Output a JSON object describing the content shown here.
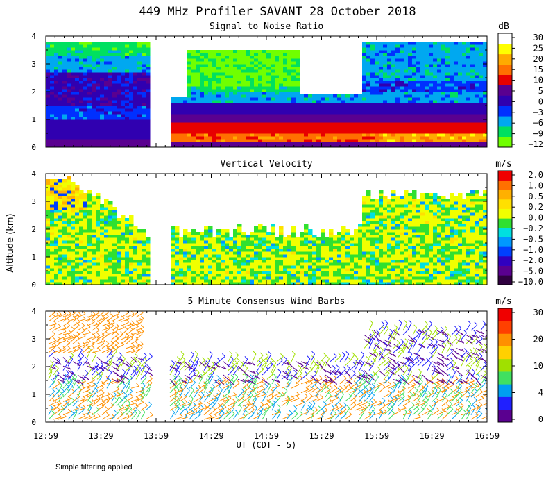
{
  "title": "449 MHz Profiler SAVANT 28 October 2018",
  "ylabel": "Altitude (km)",
  "xlabel": "UT  (CDT - 5)",
  "footer": "Simple filtering applied",
  "x_ticks": [
    "12:59",
    "13:29",
    "13:59",
    "14:29",
    "14:59",
    "15:29",
    "15:59",
    "16:29",
    "16:59"
  ],
  "colors": {
    "snr": [
      "#70ff00",
      "#00e060",
      "#00a8f0",
      "#0030ff",
      "#3000b0",
      "#5a0090",
      "#e80000",
      "#ff7000",
      "#ffaa00",
      "#ffff00",
      "#ffffff"
    ],
    "vel": [
      "#300040",
      "#5a0090",
      "#3000c0",
      "#0040ff",
      "#0098ff",
      "#00e0e0",
      "#30e030",
      "#f0ff00",
      "#ffe000",
      "#ffb000",
      "#ff7000",
      "#f00000"
    ],
    "wind": [
      "#5a0090",
      "#2020ff",
      "#00a0f0",
      "#40e060",
      "#a0e000",
      "#ffd000",
      "#ff9000",
      "#ff4000",
      "#f00000"
    ]
  },
  "chart_data": [
    {
      "type": "heatmap",
      "title": "Signal to Noise Ratio",
      "units": "dB",
      "xlim": [
        "12:59",
        "16:59"
      ],
      "ylim": [
        0,
        4
      ],
      "y_ticks": [
        "0",
        "1",
        "2",
        "3",
        "4"
      ],
      "colorbar_ticks": [
        "30",
        "25",
        "20",
        "15",
        "10",
        "5",
        "0",
        "−3",
        "−6",
        "−9",
        "−12"
      ],
      "data_gap": [
        "13:55",
        "14:05"
      ],
      "data_top_km": 3.8
    },
    {
      "type": "heatmap",
      "title": "Vertical Velocity",
      "units": "m/s",
      "xlim": [
        "12:59",
        "16:59"
      ],
      "ylim": [
        0,
        4
      ],
      "y_ticks": [
        "0",
        "1",
        "2",
        "3",
        "4"
      ],
      "colorbar_ticks": [
        "2.0",
        "1.0",
        "0.5",
        "0.2",
        "0.0",
        "−0.2",
        "−0.5",
        "−1.0",
        "−2.0",
        "−5.0",
        "−10.0"
      ],
      "data_gap": [
        "13:55",
        "14:05"
      ]
    },
    {
      "type": "scatter",
      "title": "5 Minute Consensus Wind Barbs",
      "units": "m/s",
      "xlim": [
        "12:59",
        "16:59"
      ],
      "ylim": [
        0,
        4
      ],
      "y_ticks": [
        "0",
        "1",
        "2",
        "3",
        "4"
      ],
      "colorbar_ticks": [
        "30",
        "20",
        "10",
        "4",
        "0"
      ]
    }
  ]
}
